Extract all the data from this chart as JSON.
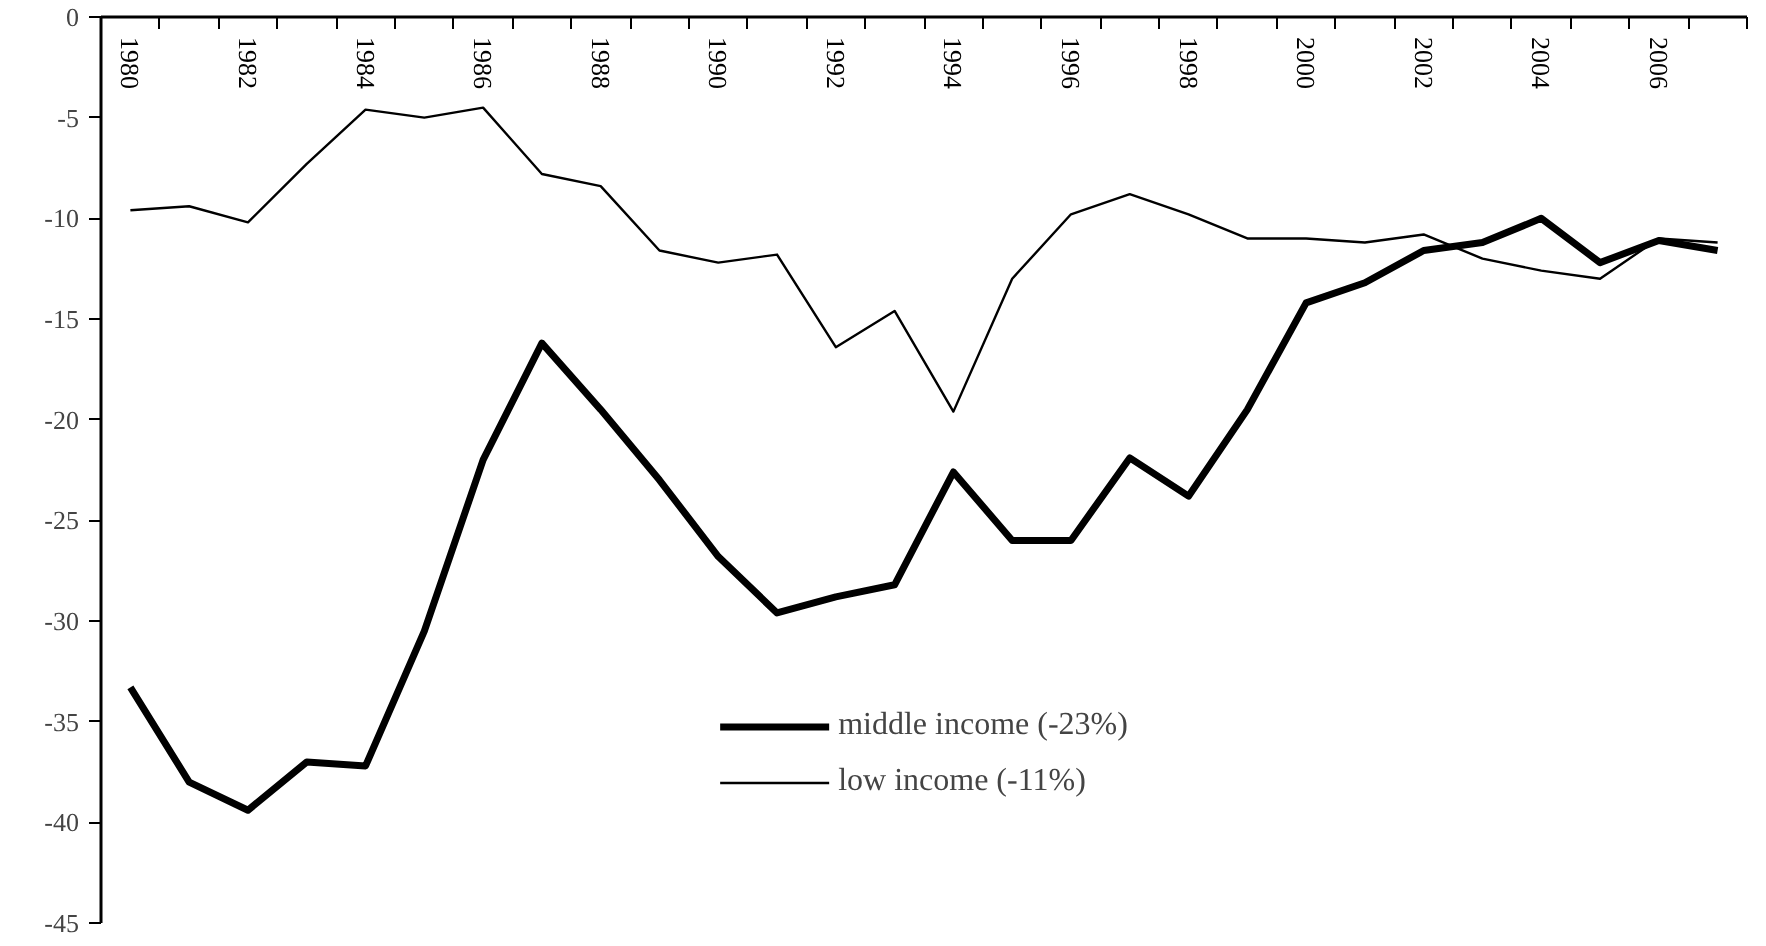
{
  "chart_data": {
    "type": "line",
    "categories": [
      "1980",
      null,
      "1982",
      null,
      "1984",
      null,
      "1986",
      null,
      "1988",
      null,
      "1990",
      null,
      "1992",
      null,
      "1994",
      null,
      "1996",
      null,
      "1998",
      null,
      "2000",
      null,
      "2002",
      null,
      "2004",
      null,
      "2006",
      null
    ],
    "series": [
      {
        "name": "middle income (-23%)",
        "color": "#000000",
        "values": [
          -33.3,
          -38,
          -39.4,
          -37,
          -37.2,
          -30.5,
          -22,
          -16.2,
          -19.5,
          -23,
          -26.8,
          -29.6,
          -28.8,
          -28.2,
          -22.6,
          -26,
          -26,
          -21.9,
          -23.8,
          -19.5,
          -14.2,
          -13.2,
          -11.6,
          -11.2,
          -10,
          -12.2,
          -11.1,
          -11.6
        ]
      },
      {
        "name": "low income (-11%)",
        "color": "#000000",
        "values": [
          -9.6,
          -9.4,
          -10.2,
          -7.3,
          -4.6,
          -5,
          -4.5,
          -7.8,
          -8.4,
          -11.6,
          -12.2,
          -11.8,
          -16.4,
          -14.6,
          -19.6,
          -13,
          -9.8,
          -8.8,
          -9.8,
          -11,
          -11,
          -11.2,
          -10.8,
          -12,
          -12.6,
          -13,
          -11,
          -11.2
        ]
      }
    ],
    "ylim": [
      -45,
      0
    ],
    "yticks": [
      0,
      -5,
      -10,
      -15,
      -20,
      -25,
      -30,
      -35,
      -40,
      -45
    ],
    "grid": false,
    "legend": "bottom",
    "marker": "none",
    "line_style": "solid"
  }
}
